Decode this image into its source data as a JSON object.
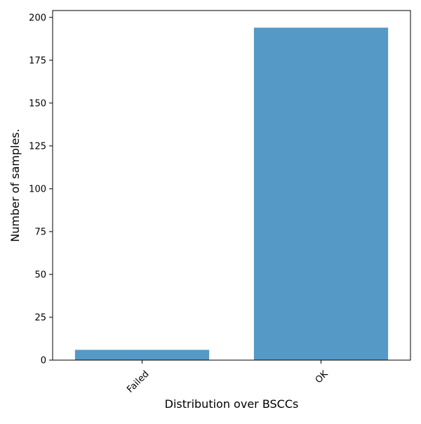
{
  "chart_data": {
    "type": "bar",
    "categories": [
      "Failed",
      "OK"
    ],
    "values": [
      6,
      194
    ],
    "title": "",
    "xlabel": "Distribution over BSCCs",
    "ylabel": "Number of samples.",
    "ylim": [
      0,
      204
    ],
    "yticks": [
      0,
      25,
      50,
      75,
      100,
      125,
      150,
      175,
      200
    ],
    "xtick_rotation_deg": 45,
    "grid": false,
    "legend": "none",
    "bar_color": "#5599c7"
  }
}
